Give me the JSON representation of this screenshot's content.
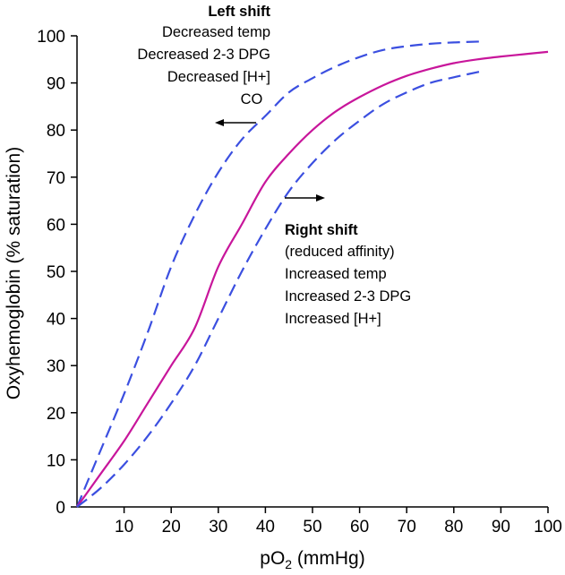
{
  "chart_data": {
    "type": "line",
    "title": "",
    "xlabel": "pO",
    "xlabel_subscript": "2",
    "xlabel_unit": " (mmHg)",
    "ylabel": "Oxyhemoglobin (% saturation)",
    "xlim": [
      0,
      100
    ],
    "ylim": [
      0,
      100
    ],
    "x_ticks": [
      "10",
      "20",
      "30",
      "40",
      "50",
      "60",
      "70",
      "80",
      "90",
      "100"
    ],
    "x_tick_values": [
      10,
      20,
      30,
      40,
      50,
      60,
      70,
      80,
      90,
      100
    ],
    "y_ticks": [
      "0",
      "10",
      "20",
      "30",
      "40",
      "50",
      "60",
      "70",
      "80",
      "90",
      "100"
    ],
    "y_tick_values": [
      0,
      10,
      20,
      30,
      40,
      50,
      60,
      70,
      80,
      90,
      100
    ],
    "grid": false,
    "series": [
      {
        "style": "dashed",
        "color": "#3b4fe0",
        "x": [
          0,
          5,
          10,
          15,
          20,
          25,
          30,
          35,
          40,
          45,
          50,
          55,
          60,
          65,
          70,
          75,
          80,
          86
        ],
        "values": [
          0,
          12,
          24,
          37,
          51,
          62,
          71,
          78,
          83,
          88,
          91,
          93.5,
          95.5,
          97,
          97.8,
          98.3,
          98.6,
          98.8
        ]
      },
      {
        "style": "solid",
        "color": "#c8169b",
        "x": [
          0,
          5,
          10,
          15,
          20,
          25,
          30,
          35,
          40,
          45,
          50,
          55,
          60,
          65,
          70,
          75,
          80,
          85,
          90,
          95,
          100
        ],
        "values": [
          0,
          7,
          14,
          22,
          30,
          38,
          51,
          60,
          69,
          75,
          80,
          84,
          87,
          89.5,
          91.5,
          93,
          94.2,
          95,
          95.6,
          96.1,
          96.6
        ]
      },
      {
        "style": "dashed",
        "color": "#3b4fe0",
        "x": [
          0,
          5,
          10,
          15,
          20,
          25,
          30,
          35,
          40,
          45,
          50,
          55,
          60,
          65,
          70,
          75,
          80,
          86
        ],
        "values": [
          0,
          4,
          9,
          15,
          22,
          30,
          40,
          50,
          59,
          67,
          73,
          78,
          82,
          85.5,
          88,
          90,
          91.2,
          92.5
        ]
      }
    ],
    "annotations": {
      "left_shift": {
        "heading": "Left shift",
        "lines": [
          "Decreased temp",
          "Decreased 2-3 DPG",
          "Decreased [H+]",
          "CO"
        ]
      },
      "right_shift": {
        "heading": "Right shift",
        "lines": [
          "(reduced affinity)",
          "Increased temp",
          "Increased 2-3 DPG",
          "Increased [H+]"
        ]
      }
    }
  }
}
